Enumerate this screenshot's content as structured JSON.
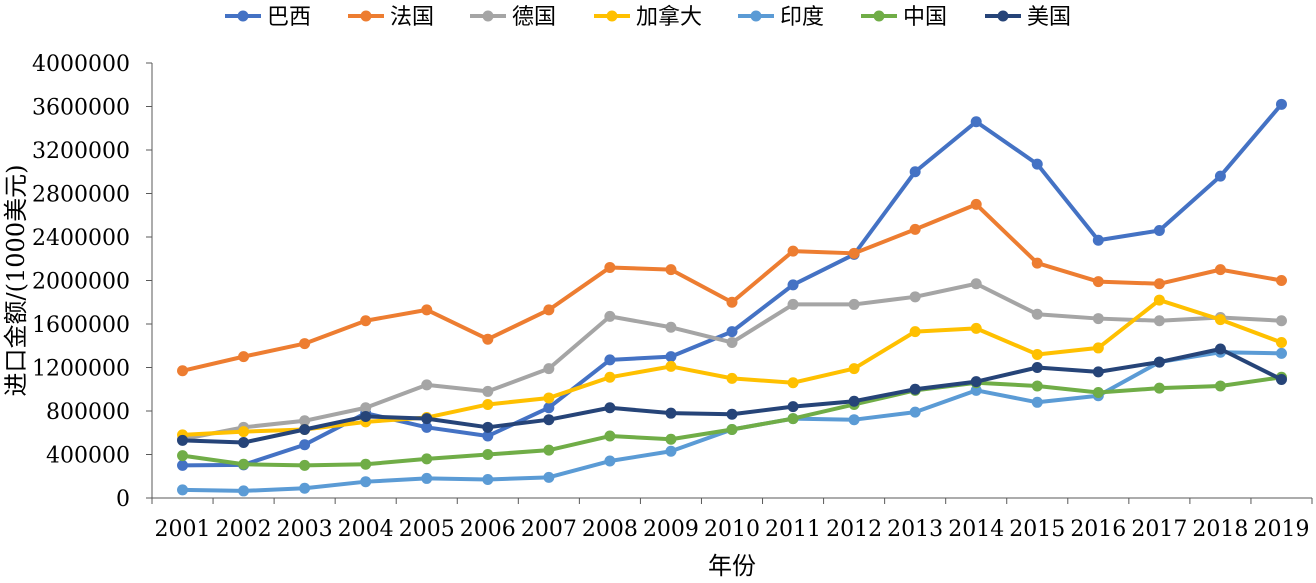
{
  "chart_data": {
    "type": "line",
    "title": "",
    "xlabel": "年份",
    "ylabel": "进口金额/(1000美元)",
    "ylim": [
      0,
      4000000
    ],
    "yticks": [
      "0",
      "400000",
      "800000",
      "1200000",
      "1600000",
      "2000000",
      "2400000",
      "2800000",
      "3200000",
      "3600000",
      "4000000"
    ],
    "grid": false,
    "legend": "top",
    "categories": [
      "2001",
      "2002",
      "2003",
      "2004",
      "2005",
      "2006",
      "2007",
      "2008",
      "2009",
      "2010",
      "2011",
      "2012",
      "2013",
      "2014",
      "2015",
      "2016",
      "2017",
      "2018",
      "2019"
    ],
    "series": [
      {
        "name": "巴西",
        "color": "#4472C4",
        "values": [
          300000,
          305000,
          490000,
          780000,
          650000,
          570000,
          830000,
          1270000,
          1300000,
          1530000,
          1960000,
          2240000,
          3000000,
          3460000,
          3070000,
          2370000,
          2460000,
          2960000,
          3620000
        ]
      },
      {
        "name": "法国",
        "color": "#ED7D31",
        "values": [
          1170000,
          1300000,
          1420000,
          1630000,
          1730000,
          1460000,
          1730000,
          2120000,
          2100000,
          1800000,
          2270000,
          2250000,
          2470000,
          2700000,
          2160000,
          1990000,
          1970000,
          2100000,
          2000000
        ]
      },
      {
        "name": "德国",
        "color": "#A5A5A5",
        "values": [
          540000,
          650000,
          710000,
          830000,
          1040000,
          980000,
          1190000,
          1670000,
          1570000,
          1430000,
          1780000,
          1780000,
          1850000,
          1970000,
          1690000,
          1650000,
          1630000,
          1660000,
          1630000
        ]
      },
      {
        "name": "加拿大",
        "color": "#FFC000",
        "values": [
          580000,
          610000,
          630000,
          700000,
          740000,
          860000,
          920000,
          1110000,
          1210000,
          1100000,
          1060000,
          1190000,
          1530000,
          1560000,
          1320000,
          1380000,
          1820000,
          1640000,
          1430000
        ]
      },
      {
        "name": "印度",
        "color": "#5B9BD5",
        "values": [
          75000,
          65000,
          90000,
          150000,
          180000,
          170000,
          190000,
          340000,
          430000,
          630000,
          730000,
          720000,
          790000,
          990000,
          880000,
          940000,
          1250000,
          1340000,
          1330000
        ]
      },
      {
        "name": "中国",
        "color": "#70AD47",
        "values": [
          390000,
          310000,
          300000,
          310000,
          360000,
          400000,
          440000,
          570000,
          540000,
          630000,
          730000,
          860000,
          990000,
          1060000,
          1030000,
          970000,
          1010000,
          1030000,
          1110000
        ]
      },
      {
        "name": "美国",
        "color": "#264478",
        "values": [
          530000,
          510000,
          630000,
          750000,
          730000,
          650000,
          720000,
          830000,
          780000,
          770000,
          840000,
          890000,
          1000000,
          1070000,
          1200000,
          1160000,
          1250000,
          1370000,
          1090000
        ]
      }
    ]
  }
}
